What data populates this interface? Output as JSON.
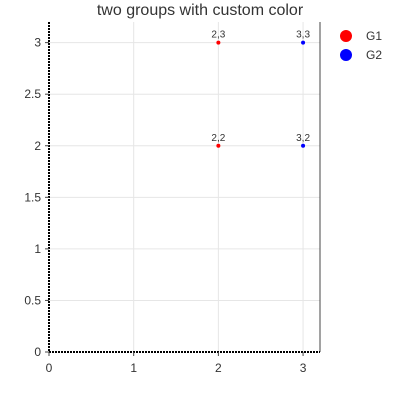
{
  "chart_data": {
    "type": "scatter",
    "title": "two groups with custom color",
    "xlabel": "",
    "ylabel": "",
    "xlim": [
      0,
      3.2
    ],
    "ylim": [
      0,
      3.2
    ],
    "x_ticks": [
      0,
      1,
      2,
      3
    ],
    "y_ticks": [
      0,
      0.5,
      1,
      1.5,
      2,
      2.5,
      3
    ],
    "grid": true,
    "legend_position": "top-right",
    "series": [
      {
        "name": "G1",
        "color": "#ff0000",
        "points": [
          {
            "x": 2,
            "y": 2,
            "label": "2,2"
          },
          {
            "x": 2,
            "y": 3,
            "label": "2,3"
          }
        ]
      },
      {
        "name": "G2",
        "color": "#0000ff",
        "points": [
          {
            "x": 3,
            "y": 2,
            "label": "3,2"
          },
          {
            "x": 3,
            "y": 3,
            "label": "3,3"
          }
        ]
      }
    ]
  }
}
